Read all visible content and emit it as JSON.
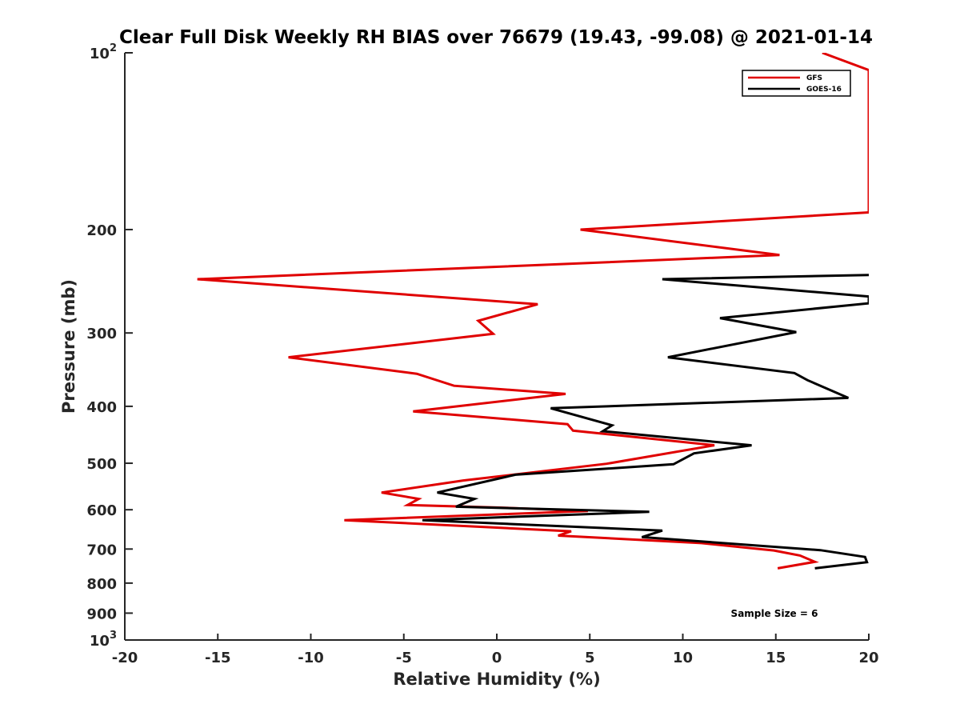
{
  "chart_data": {
    "type": "line",
    "orientation": "profile",
    "title": "Clear Full Disk Weekly RH BIAS over 76679 (19.43, -99.08) @ 2021-01-14",
    "xlabel": "Relative Humidity (%)",
    "ylabel": "Pressure (mb)",
    "xlim": [
      -20,
      20
    ],
    "ylim": [
      100,
      1000
    ],
    "y_scale": "log",
    "y_reversed": true,
    "grid": false,
    "legend_position": "top-right",
    "x_ticks": [
      "-20",
      "-15",
      "-10",
      "-5",
      "0",
      "5",
      "10",
      "15",
      "20"
    ],
    "y_ticks": [
      {
        "value": 100,
        "base": "10",
        "exp": "2"
      },
      {
        "value": 200,
        "label": "200"
      },
      {
        "value": 300,
        "label": "300"
      },
      {
        "value": 400,
        "label": "400"
      },
      {
        "value": 500,
        "label": "500"
      },
      {
        "value": 600,
        "label": "600"
      },
      {
        "value": 700,
        "label": "700"
      },
      {
        "value": 800,
        "label": "800"
      },
      {
        "value": 900,
        "label": "900"
      },
      {
        "value": 1000,
        "base": "10",
        "exp": "3"
      }
    ],
    "annotation": "Sample Size = 6",
    "series": [
      {
        "name": "GFS",
        "color": "#e00000",
        "points": [
          [
            17.5,
            100
          ],
          [
            20,
            107
          ],
          [
            20,
            187
          ],
          [
            4.5,
            200
          ],
          [
            15.2,
            221
          ],
          [
            -16.1,
            243
          ],
          [
            2.2,
            268
          ],
          [
            -1.0,
            286
          ],
          [
            -0.2,
            301
          ],
          [
            -11.2,
            330
          ],
          [
            -4.3,
            352
          ],
          [
            -2.3,
            369
          ],
          [
            3.7,
            381
          ],
          [
            -4.5,
            408
          ],
          [
            3.8,
            429
          ],
          [
            4.1,
            440
          ],
          [
            11.7,
            466
          ],
          [
            5.9,
            501
          ],
          [
            -1.8,
            535
          ],
          [
            -6.2,
            561
          ],
          [
            -4.2,
            575
          ],
          [
            -4.8,
            589
          ],
          [
            0.2,
            595
          ],
          [
            4.9,
            603
          ],
          [
            -8.2,
            625
          ],
          [
            4.0,
            653
          ],
          [
            3.3,
            664
          ],
          [
            11.0,
            684
          ],
          [
            14.9,
            704
          ],
          [
            16.3,
            718
          ],
          [
            17.1,
            736
          ],
          [
            15.1,
            755
          ]
        ]
      },
      {
        "name": "GOES-16",
        "color": "#000000",
        "points": [
          [
            20,
            239
          ],
          [
            8.9,
            243
          ],
          [
            20,
            260
          ],
          [
            20,
            267
          ],
          [
            12.0,
            283
          ],
          [
            16.1,
            299
          ],
          [
            9.2,
            330
          ],
          [
            16.0,
            351
          ],
          [
            16.7,
            361
          ],
          [
            18.9,
            387
          ],
          [
            2.9,
            403
          ],
          [
            6.2,
            431
          ],
          [
            5.7,
            441
          ],
          [
            13.7,
            466
          ],
          [
            10.6,
            481
          ],
          [
            9.5,
            502
          ],
          [
            1.0,
            523
          ],
          [
            -3.2,
            561
          ],
          [
            -1.2,
            575
          ],
          [
            -2.2,
            593
          ],
          [
            8.2,
            605
          ],
          [
            -4.0,
            625
          ],
          [
            8.9,
            651
          ],
          [
            7.8,
            668
          ],
          [
            17.4,
            703
          ],
          [
            19.8,
            722
          ],
          [
            19.9,
            737
          ],
          [
            17.1,
            755
          ]
        ]
      }
    ]
  }
}
